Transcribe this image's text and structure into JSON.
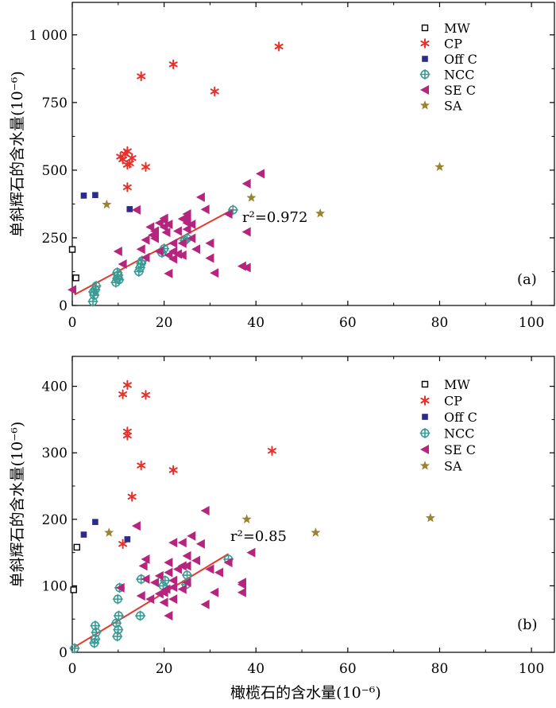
{
  "figure": {
    "xlabel": "橄榄石的含水量(10⁻⁶)",
    "legend_position": "top-right",
    "series_styles": [
      {
        "name": "MW",
        "marker": "open-square",
        "color": "#000000"
      },
      {
        "name": "CP",
        "marker": "asterisk",
        "color": "#e8302a"
      },
      {
        "name": "Off C",
        "marker": "filled-square",
        "color": "#2e2a8a"
      },
      {
        "name": "NCC",
        "marker": "crossed-circle",
        "color": "#3a9a94"
      },
      {
        "name": "SE C",
        "marker": "left-triangle",
        "color": "#b5257e"
      },
      {
        "name": "SA",
        "marker": "star",
        "color": "#9a8430"
      }
    ],
    "fit_color": "#e03b2e"
  },
  "chart_data": [
    {
      "type": "scatter",
      "panel_label": "(a)",
      "xlabel": "",
      "ylabel": "单斜辉石的含水量(10⁻⁶)",
      "xlim": [
        0,
        105
      ],
      "ylim": [
        0,
        1120
      ],
      "xticks": [
        0,
        20,
        40,
        60,
        80,
        100
      ],
      "yticks": [
        0,
        250,
        500,
        750,
        1000
      ],
      "ytick_labels": [
        "0",
        "250",
        "500",
        "750",
        "1 000"
      ],
      "grid": false,
      "legend": [
        "MW",
        "CP",
        "Off C",
        "NCC",
        "SE C",
        "SA"
      ],
      "annotation": "r²=0.972",
      "fit_line": {
        "x": [
          0.5,
          35
        ],
        "y": [
          40,
          355
        ]
      },
      "series": [
        {
          "name": "MW",
          "points": [
            [
              0,
              207
            ],
            [
              0.8,
              102
            ]
          ]
        },
        {
          "name": "CP",
          "points": [
            [
              10.5,
              550
            ],
            [
              11,
              540
            ],
            [
              11.5,
              560
            ],
            [
              12,
              570
            ],
            [
              12,
              520
            ],
            [
              12.5,
              525
            ],
            [
              13,
              545
            ],
            [
              12,
              437
            ],
            [
              16,
              512
            ],
            [
              15,
              847
            ],
            [
              22,
              891
            ],
            [
              31,
              791
            ],
            [
              45,
              957
            ]
          ]
        },
        {
          "name": "Off C",
          "points": [
            [
              2.5,
              406
            ],
            [
              5,
              408
            ],
            [
              12.5,
              356
            ]
          ]
        },
        {
          "name": "NCC",
          "points": [
            [
              4.5,
              15
            ],
            [
              4.8,
              38
            ],
            [
              5,
              58
            ],
            [
              5.2,
              72
            ],
            [
              4.6,
              50
            ],
            [
              9.5,
              85
            ],
            [
              9.8,
              100
            ],
            [
              10,
              112
            ],
            [
              10.2,
              95
            ],
            [
              9.8,
              122
            ],
            [
              14.5,
              125
            ],
            [
              14.8,
              140
            ],
            [
              15,
              155
            ],
            [
              15.2,
              165
            ],
            [
              19.5,
              195
            ],
            [
              20,
              210
            ],
            [
              24.5,
              240
            ],
            [
              25,
              248
            ],
            [
              35,
              353
            ]
          ]
        },
        {
          "name": "SE C",
          "points": [
            [
              0,
              58
            ],
            [
              10,
              200
            ],
            [
              11,
              153
            ],
            [
              14,
              353
            ],
            [
              15,
              208
            ],
            [
              16,
              177
            ],
            [
              16,
              242
            ],
            [
              17,
              290
            ],
            [
              17.5,
              260
            ],
            [
              18,
              248
            ],
            [
              18,
              275
            ],
            [
              19,
              305
            ],
            [
              19,
              200
            ],
            [
              20,
              315
            ],
            [
              20,
              290
            ],
            [
              20,
              322
            ],
            [
              20.5,
              270
            ],
            [
              21,
              300
            ],
            [
              21,
              118
            ],
            [
              21,
              186
            ],
            [
              22,
              200
            ],
            [
              22,
              230
            ],
            [
              22,
              172
            ],
            [
              23,
              190
            ],
            [
              23,
              275
            ],
            [
              24,
              320
            ],
            [
              24,
              230
            ],
            [
              24,
              186
            ],
            [
              25,
              282
            ],
            [
              25,
              305
            ],
            [
              25,
              338
            ],
            [
              25,
              322
            ],
            [
              26,
              300
            ],
            [
              26,
              248
            ],
            [
              27,
              208
            ],
            [
              28,
              400
            ],
            [
              29,
              355
            ],
            [
              30,
              175
            ],
            [
              30,
              230
            ],
            [
              31,
              120
            ],
            [
              34,
              338
            ],
            [
              37,
              145
            ],
            [
              38,
              140
            ],
            [
              38,
              272
            ],
            [
              38,
              450
            ],
            [
              41,
              487
            ]
          ]
        },
        {
          "name": "SA",
          "points": [
            [
              7.5,
              373
            ],
            [
              39,
              398
            ],
            [
              54,
              340
            ],
            [
              80,
              512
            ]
          ]
        }
      ]
    },
    {
      "type": "scatter",
      "panel_label": "(b)",
      "xlabel": "橄榄石的含水量(10⁻⁶)",
      "ylabel": "单斜辉石的含水量(10⁻⁶)",
      "xlim": [
        0,
        105
      ],
      "ylim": [
        0,
        445
      ],
      "xticks": [
        0,
        20,
        40,
        60,
        80,
        100
      ],
      "yticks": [
        0,
        100,
        200,
        300,
        400
      ],
      "ytick_labels": [
        "0",
        "100",
        "200",
        "300",
        "400"
      ],
      "grid": false,
      "legend": [
        "MW",
        "CP",
        "Off C",
        "NCC",
        "SE C",
        "SA"
      ],
      "annotation": "r²=0.85",
      "fit_line": {
        "x": [
          0.5,
          34
        ],
        "y": [
          8,
          148
        ]
      },
      "series": [
        {
          "name": "MW",
          "points": [
            [
              0.3,
              94
            ],
            [
              1,
              158
            ]
          ]
        },
        {
          "name": "CP",
          "points": [
            [
              11,
              388
            ],
            [
              12,
              402
            ],
            [
              16,
              387
            ],
            [
              12,
              332
            ],
            [
              12,
              326
            ],
            [
              13,
              234
            ],
            [
              15,
              281
            ],
            [
              22,
              274
            ],
            [
              11,
              163
            ],
            [
              43.5,
              303
            ]
          ]
        },
        {
          "name": "Off C",
          "points": [
            [
              2.5,
              177
            ],
            [
              5,
              196
            ],
            [
              12,
              170
            ]
          ]
        },
        {
          "name": "NCC",
          "points": [
            [
              0.5,
              6
            ],
            [
              4.8,
              14
            ],
            [
              5,
              20
            ],
            [
              5.2,
              30
            ],
            [
              5,
              40
            ],
            [
              9.8,
              24
            ],
            [
              10,
              34
            ],
            [
              9.6,
              44
            ],
            [
              10.1,
              55
            ],
            [
              9.9,
              80
            ],
            [
              10.3,
              97
            ],
            [
              14.8,
              55
            ],
            [
              15,
              110
            ],
            [
              19.8,
              100
            ],
            [
              20.2,
              108
            ],
            [
              24.8,
              102
            ],
            [
              25,
              116
            ],
            [
              34,
              140
            ]
          ]
        },
        {
          "name": "SE C",
          "points": [
            [
              10.5,
              97
            ],
            [
              15,
              85
            ],
            [
              15.5,
              130
            ],
            [
              16,
              140
            ],
            [
              16,
              110
            ],
            [
              17,
              80
            ],
            [
              18,
              105
            ],
            [
              19,
              115
            ],
            [
              19,
              88
            ],
            [
              20,
              75
            ],
            [
              20,
              90
            ],
            [
              20.5,
              95
            ],
            [
              21,
              120
            ],
            [
              21,
              135
            ],
            [
              21,
              55
            ],
            [
              22,
              98
            ],
            [
              22,
              165
            ],
            [
              22,
              108
            ],
            [
              22,
              80
            ],
            [
              23,
              125
            ],
            [
              24,
              130
            ],
            [
              24,
              165
            ],
            [
              24,
              95
            ],
            [
              25,
              145
            ],
            [
              25,
              130
            ],
            [
              25,
              105
            ],
            [
              26,
              175
            ],
            [
              27,
              138
            ],
            [
              28,
              163
            ],
            [
              29,
              213
            ],
            [
              29,
              72
            ],
            [
              30,
              125
            ],
            [
              31,
              90
            ],
            [
              32,
              120
            ],
            [
              34,
              135
            ],
            [
              37,
              90
            ],
            [
              37,
              105
            ],
            [
              37,
              102
            ],
            [
              39,
              150
            ],
            [
              14,
              190
            ]
          ]
        },
        {
          "name": "SA",
          "points": [
            [
              8,
              180
            ],
            [
              38,
              200
            ],
            [
              53,
              180
            ],
            [
              78,
              202
            ]
          ]
        }
      ]
    }
  ]
}
